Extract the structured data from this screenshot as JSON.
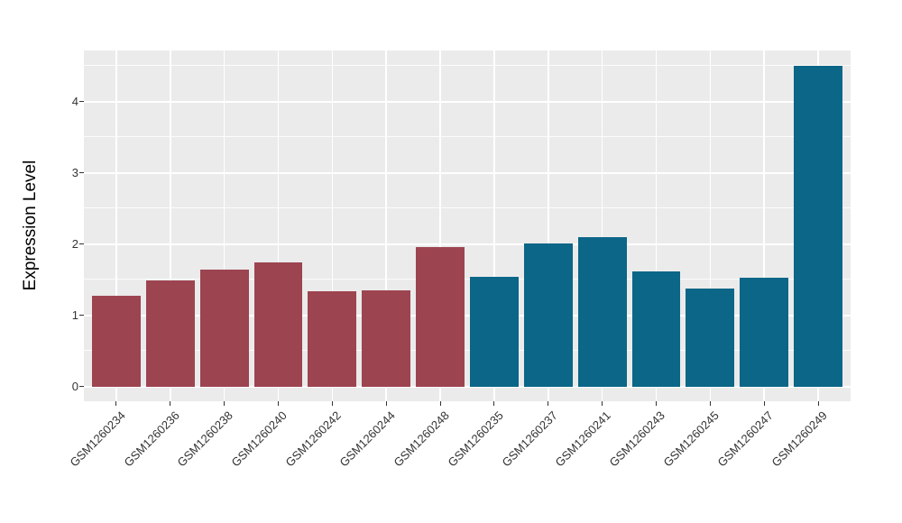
{
  "figure": {
    "background_color": "#FFFFFF",
    "panel_background_color": "#EBEBEB",
    "gridline_color": "#FFFFFF",
    "axis_text_color": "#333333",
    "axis_title_color": "#000000"
  },
  "chart_data": {
    "type": "bar",
    "title": "",
    "xlabel": "",
    "ylabel": "Expression Level",
    "ylim": [
      0,
      4.72
    ],
    "yticks": [
      0,
      1,
      2,
      3,
      4
    ],
    "minor_yticks": [
      0.5,
      1.5,
      2.5,
      3.5,
      4.5
    ],
    "grid": "white major and minor horizontal lines, white vertical lines at category centers, on gray panel",
    "legend_position": "none",
    "categories": [
      "GSM1260234",
      "GSM1260236",
      "GSM1260238",
      "GSM1260240",
      "GSM1260242",
      "GSM1260244",
      "GSM1260248",
      "GSM1260235",
      "GSM1260237",
      "GSM1260241",
      "GSM1260243",
      "GSM1260245",
      "GSM1260247",
      "GSM1260249"
    ],
    "values": [
      1.27,
      1.49,
      1.64,
      1.74,
      1.33,
      1.35,
      1.96,
      1.54,
      2.01,
      2.1,
      1.61,
      1.37,
      1.53,
      4.5
    ],
    "bar_colors": [
      "#9D4451",
      "#9D4451",
      "#9D4451",
      "#9D4451",
      "#9D4451",
      "#9D4451",
      "#9D4451",
      "#0B6687",
      "#0B6687",
      "#0B6687",
      "#0B6687",
      "#0B6687",
      "#0B6687",
      "#0B6687"
    ],
    "color_groups": [
      {
        "color": "#9D4451",
        "sample_count": 7
      },
      {
        "color": "#0B6687",
        "sample_count": 7
      }
    ]
  }
}
